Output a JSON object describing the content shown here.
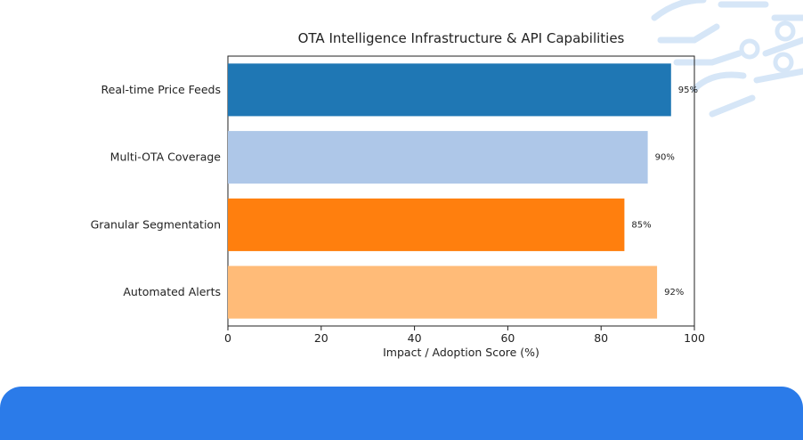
{
  "chart_data": {
    "type": "bar",
    "orientation": "horizontal",
    "title": "OTA Intelligence Infrastructure & API Capabilities",
    "xlabel": "Impact / Adoption Score (%)",
    "ylabel": "",
    "xlim": [
      0,
      100
    ],
    "xticks": [
      0,
      20,
      40,
      60,
      80,
      100
    ],
    "categories": [
      "Real-time Price Feeds",
      "Multi-OTA Coverage",
      "Granular Segmentation",
      "Automated Alerts"
    ],
    "values": [
      95,
      90,
      85,
      92
    ],
    "value_labels": [
      "95%",
      "90%",
      "85%",
      "92%"
    ],
    "colors": [
      "#1f77b4",
      "#aec7e8",
      "#ff7f0e",
      "#ffbb78"
    ],
    "grid": false,
    "legend": "none"
  },
  "theme": {
    "banner_color": "#2b7be9",
    "decoration_color": "#d6e6f7",
    "decoration_icon": "circuit-lines-icon"
  }
}
